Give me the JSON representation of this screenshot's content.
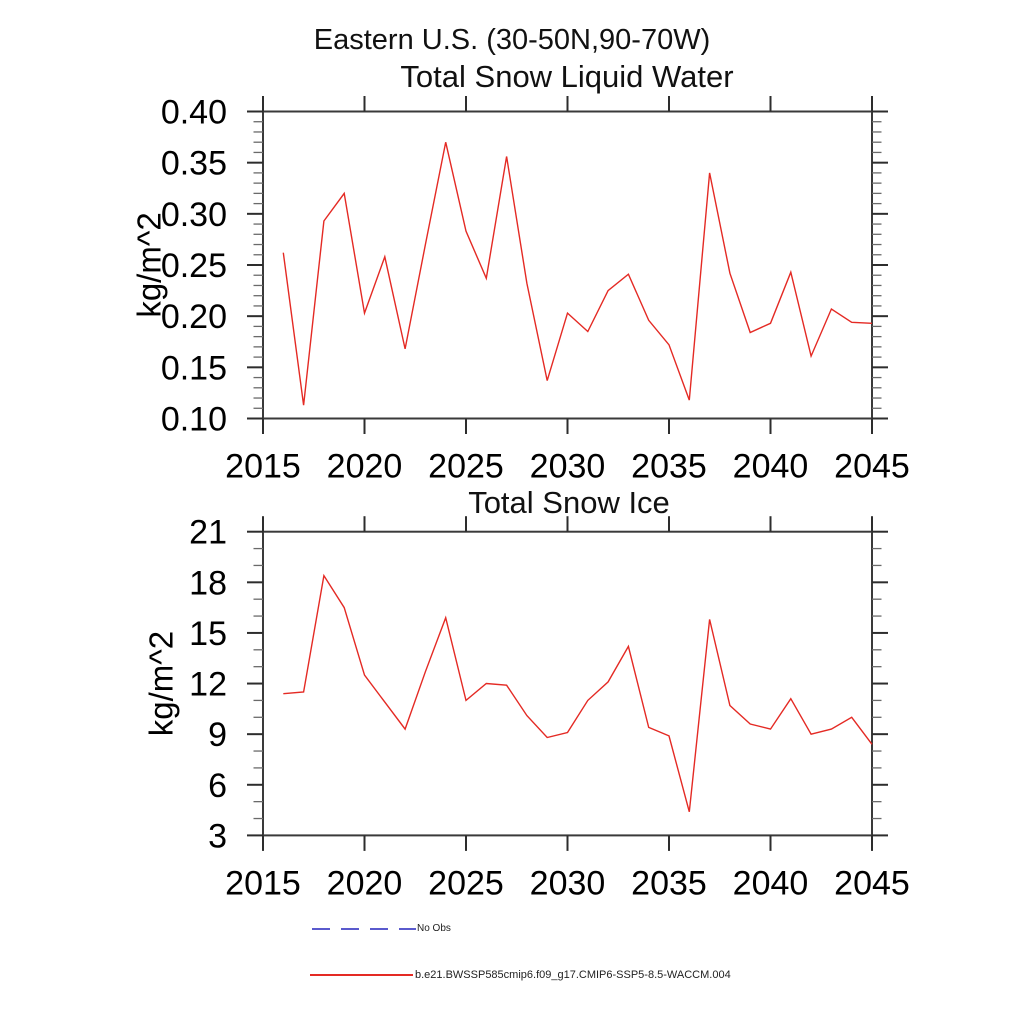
{
  "figure": {
    "region_title": "Eastern U.S. (30-50N,90-70W)"
  },
  "legend": {
    "items": [
      {
        "label": "No Obs",
        "color": "#5a5acd",
        "line_style": "dashed"
      },
      {
        "label": "b.e21.BWSSP585cmip6.f09_g17.CMIP6-SSP5-8.5-WACCM.004",
        "color": "#e42a24",
        "line_style": "solid"
      }
    ]
  },
  "chart_data": [
    {
      "type": "line",
      "title": "Total Snow Liquid Water",
      "ylabel": "kg/m^2",
      "series_name": "b.e21.BWSSP585cmip6.f09_g17.CMIP6-SSP5-8.5-WACCM.004",
      "line_color": "#e42a24",
      "axis_color": "#3a3a3a",
      "grid": false,
      "xlim": [
        2015,
        2045
      ],
      "ylim": [
        0.1,
        0.4
      ],
      "xticks": [
        2015,
        2020,
        2025,
        2030,
        2035,
        2040,
        2045
      ],
      "yticks": {
        "values": [
          0.1,
          0.15,
          0.2,
          0.25,
          0.3,
          0.35,
          0.4
        ],
        "labels": [
          "0.10",
          "0.15",
          "0.20",
          "0.25",
          "0.30",
          "0.35",
          "0.40"
        ]
      },
      "ymajor_step": 0.05,
      "yminor_step": 0.01,
      "x": [
        2016,
        2017,
        2018,
        2019,
        2020,
        2021,
        2022,
        2023,
        2024,
        2025,
        2026,
        2027,
        2028,
        2029,
        2030,
        2031,
        2032,
        2033,
        2034,
        2035,
        2036,
        2037,
        2038,
        2039,
        2040,
        2041,
        2042,
        2043,
        2044,
        2045
      ],
      "values": [
        0.262,
        0.113,
        0.293,
        0.32,
        0.203,
        0.258,
        0.168,
        0.27,
        0.37,
        0.283,
        0.237,
        0.356,
        0.232,
        0.137,
        0.203,
        0.185,
        0.225,
        0.241,
        0.196,
        0.172,
        0.118,
        0.34,
        0.242,
        0.184,
        0.193,
        0.243,
        0.161,
        0.207,
        0.194,
        0.193
      ]
    },
    {
      "type": "line",
      "title": "Total Snow Ice",
      "ylabel": "kg/m^2",
      "series_name": "b.e21.BWSSP585cmip6.f09_g17.CMIP6-SSP5-8.5-WACCM.004",
      "line_color": "#e42a24",
      "axis_color": "#3a3a3a",
      "grid": false,
      "xlim": [
        2015,
        2045
      ],
      "ylim": [
        3,
        21
      ],
      "xticks": [
        2015,
        2020,
        2025,
        2030,
        2035,
        2040,
        2045
      ],
      "yticks": {
        "values": [
          3,
          6,
          9,
          12,
          15,
          18,
          21
        ],
        "labels": [
          "3",
          "6",
          "9",
          "12",
          "15",
          "18",
          "21"
        ]
      },
      "ymajor_step": 3,
      "yminor_step": 1,
      "x": [
        2016,
        2017,
        2018,
        2019,
        2020,
        2021,
        2022,
        2023,
        2024,
        2025,
        2026,
        2027,
        2028,
        2029,
        2030,
        2031,
        2032,
        2033,
        2034,
        2035,
        2036,
        2037,
        2038,
        2039,
        2040,
        2041,
        2042,
        2043,
        2044,
        2045
      ],
      "values": [
        11.4,
        11.5,
        18.4,
        16.5,
        12.5,
        10.9,
        9.3,
        12.7,
        15.9,
        11.0,
        12.0,
        11.9,
        10.1,
        8.8,
        9.1,
        11.0,
        12.1,
        14.2,
        9.4,
        8.9,
        4.4,
        15.8,
        10.7,
        9.6,
        9.3,
        11.1,
        9.0,
        9.3,
        10.0,
        8.4
      ]
    }
  ]
}
